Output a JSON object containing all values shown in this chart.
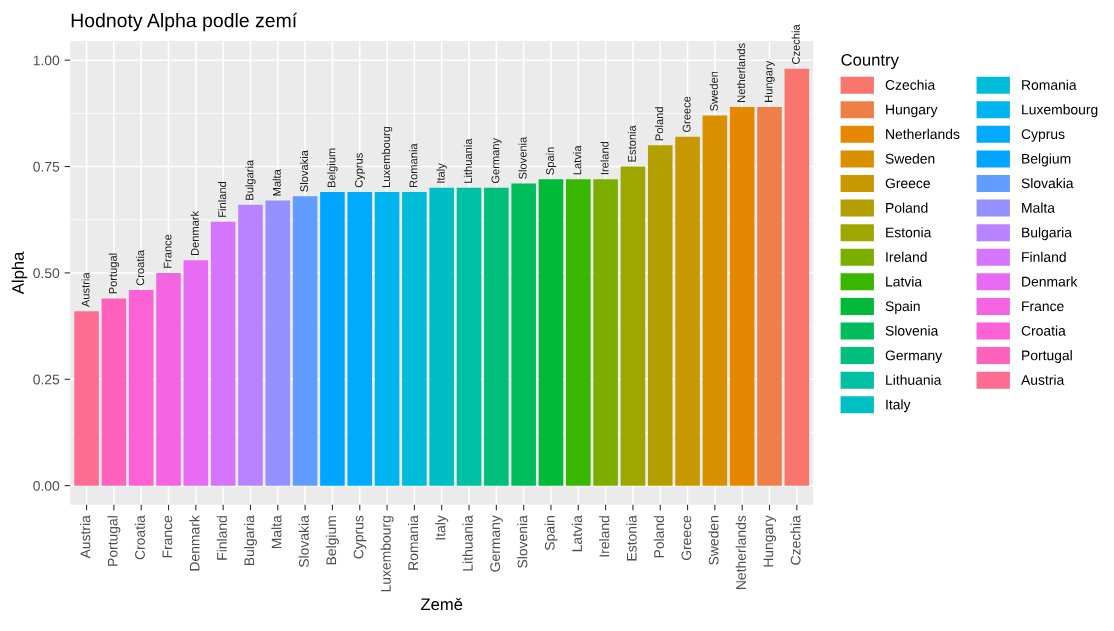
{
  "chart_data": {
    "type": "bar",
    "title": "Hodnoty Alpha podle zemí",
    "xlabel": "Země",
    "ylabel": "Alpha",
    "legend_title": "Country",
    "categories": [
      "Austria",
      "Portugal",
      "Croatia",
      "France",
      "Denmark",
      "Finland",
      "Bulgaria",
      "Malta",
      "Slovakia",
      "Belgium",
      "Cyprus",
      "Luxembourg",
      "Romania",
      "Italy",
      "Lithuania",
      "Germany",
      "Slovenia",
      "Spain",
      "Latvia",
      "Ireland",
      "Estonia",
      "Poland",
      "Greece",
      "Sweden",
      "Netherlands",
      "Hungary",
      "Czechia"
    ],
    "series": [
      {
        "name": "Czechia",
        "color": "#F8766D",
        "values": [
          null,
          null,
          null,
          null,
          null,
          null,
          null,
          null,
          null,
          null,
          null,
          null,
          null,
          null,
          null,
          null,
          null,
          null,
          null,
          null,
          null,
          null,
          null,
          null,
          null,
          null,
          0.98
        ]
      },
      {
        "name": "Hungary",
        "color": "#EF7F49",
        "values": [
          null,
          null,
          null,
          null,
          null,
          null,
          null,
          null,
          null,
          null,
          null,
          null,
          null,
          null,
          null,
          null,
          null,
          null,
          null,
          null,
          null,
          null,
          null,
          null,
          null,
          0.89,
          null
        ]
      },
      {
        "name": "Netherlands",
        "color": "#E58700",
        "values": [
          null,
          null,
          null,
          null,
          null,
          null,
          null,
          null,
          null,
          null,
          null,
          null,
          null,
          null,
          null,
          null,
          null,
          null,
          null,
          null,
          null,
          null,
          null,
          null,
          0.89,
          null,
          null
        ]
      },
      {
        "name": "Sweden",
        "color": "#D89000",
        "values": [
          null,
          null,
          null,
          null,
          null,
          null,
          null,
          null,
          null,
          null,
          null,
          null,
          null,
          null,
          null,
          null,
          null,
          null,
          null,
          null,
          null,
          null,
          null,
          0.87,
          null,
          null,
          null
        ]
      },
      {
        "name": "Greece",
        "color": "#C79800",
        "values": [
          null,
          null,
          null,
          null,
          null,
          null,
          null,
          null,
          null,
          null,
          null,
          null,
          null,
          null,
          null,
          null,
          null,
          null,
          null,
          null,
          null,
          null,
          0.82,
          null,
          null,
          null,
          null
        ]
      },
      {
        "name": "Poland",
        "color": "#B3A000",
        "values": [
          null,
          null,
          null,
          null,
          null,
          null,
          null,
          null,
          null,
          null,
          null,
          null,
          null,
          null,
          null,
          null,
          null,
          null,
          null,
          null,
          null,
          0.8,
          null,
          null,
          null,
          null,
          null
        ]
      },
      {
        "name": "Estonia",
        "color": "#9DA700",
        "values": [
          null,
          null,
          null,
          null,
          null,
          null,
          null,
          null,
          null,
          null,
          null,
          null,
          null,
          null,
          null,
          null,
          null,
          null,
          null,
          null,
          0.75,
          null,
          null,
          null,
          null,
          null,
          null
        ]
      },
      {
        "name": "Ireland",
        "color": "#7CAE00",
        "values": [
          null,
          null,
          null,
          null,
          null,
          null,
          null,
          null,
          null,
          null,
          null,
          null,
          null,
          null,
          null,
          null,
          null,
          null,
          null,
          0.72,
          null,
          null,
          null,
          null,
          null,
          null,
          null
        ]
      },
      {
        "name": "Latvia",
        "color": "#39B600",
        "values": [
          null,
          null,
          null,
          null,
          null,
          null,
          null,
          null,
          null,
          null,
          null,
          null,
          null,
          null,
          null,
          null,
          null,
          null,
          0.72,
          null,
          null,
          null,
          null,
          null,
          null,
          null,
          null
        ]
      },
      {
        "name": "Spain",
        "color": "#00BA38",
        "values": [
          null,
          null,
          null,
          null,
          null,
          null,
          null,
          null,
          null,
          null,
          null,
          null,
          null,
          null,
          null,
          null,
          null,
          0.72,
          null,
          null,
          null,
          null,
          null,
          null,
          null,
          null,
          null
        ]
      },
      {
        "name": "Slovenia",
        "color": "#00BD5C",
        "values": [
          null,
          null,
          null,
          null,
          null,
          null,
          null,
          null,
          null,
          null,
          null,
          null,
          null,
          null,
          null,
          null,
          0.71,
          null,
          null,
          null,
          null,
          null,
          null,
          null,
          null,
          null,
          null
        ]
      },
      {
        "name": "Germany",
        "color": "#00BF7D",
        "values": [
          null,
          null,
          null,
          null,
          null,
          null,
          null,
          null,
          null,
          null,
          null,
          null,
          null,
          null,
          null,
          0.7,
          null,
          null,
          null,
          null,
          null,
          null,
          null,
          null,
          null,
          null,
          null
        ]
      },
      {
        "name": "Lithuania",
        "color": "#00C0A3",
        "values": [
          null,
          null,
          null,
          null,
          null,
          null,
          null,
          null,
          null,
          null,
          null,
          null,
          null,
          null,
          0.7,
          null,
          null,
          null,
          null,
          null,
          null,
          null,
          null,
          null,
          null,
          null,
          null
        ]
      },
      {
        "name": "Italy",
        "color": "#00BFC4",
        "values": [
          null,
          null,
          null,
          null,
          null,
          null,
          null,
          null,
          null,
          null,
          null,
          null,
          null,
          0.7,
          null,
          null,
          null,
          null,
          null,
          null,
          null,
          null,
          null,
          null,
          null,
          null,
          null
        ]
      },
      {
        "name": "Romania",
        "color": "#00BCD8",
        "values": [
          null,
          null,
          null,
          null,
          null,
          null,
          null,
          null,
          null,
          null,
          null,
          null,
          0.69,
          null,
          null,
          null,
          null,
          null,
          null,
          null,
          null,
          null,
          null,
          null,
          null,
          null,
          null
        ]
      },
      {
        "name": "Luxembourg",
        "color": "#00B4EF",
        "values": [
          null,
          null,
          null,
          null,
          null,
          null,
          null,
          null,
          null,
          null,
          null,
          0.69,
          null,
          null,
          null,
          null,
          null,
          null,
          null,
          null,
          null,
          null,
          null,
          null,
          null,
          null,
          null
        ]
      },
      {
        "name": "Cyprus",
        "color": "#00ABFD",
        "values": [
          null,
          null,
          null,
          null,
          null,
          null,
          null,
          null,
          null,
          null,
          0.69,
          null,
          null,
          null,
          null,
          null,
          null,
          null,
          null,
          null,
          null,
          null,
          null,
          null,
          null,
          null,
          null
        ]
      },
      {
        "name": "Belgium",
        "color": "#00A5FF",
        "values": [
          null,
          null,
          null,
          null,
          null,
          null,
          null,
          null,
          null,
          0.69,
          null,
          null,
          null,
          null,
          null,
          null,
          null,
          null,
          null,
          null,
          null,
          null,
          null,
          null,
          null,
          null,
          null
        ]
      },
      {
        "name": "Slovakia",
        "color": "#619CFF",
        "values": [
          null,
          null,
          null,
          null,
          null,
          null,
          null,
          null,
          0.68,
          null,
          null,
          null,
          null,
          null,
          null,
          null,
          null,
          null,
          null,
          null,
          null,
          null,
          null,
          null,
          null,
          null,
          null
        ]
      },
      {
        "name": "Malta",
        "color": "#9590FF",
        "values": [
          null,
          null,
          null,
          null,
          null,
          null,
          null,
          0.67,
          null,
          null,
          null,
          null,
          null,
          null,
          null,
          null,
          null,
          null,
          null,
          null,
          null,
          null,
          null,
          null,
          null,
          null,
          null
        ]
      },
      {
        "name": "Bulgaria",
        "color": "#B983FF",
        "values": [
          null,
          null,
          null,
          null,
          null,
          null,
          0.66,
          null,
          null,
          null,
          null,
          null,
          null,
          null,
          null,
          null,
          null,
          null,
          null,
          null,
          null,
          null,
          null,
          null,
          null,
          null,
          null
        ]
      },
      {
        "name": "Finland",
        "color": "#D575FE",
        "values": [
          null,
          null,
          null,
          null,
          null,
          0.62,
          null,
          null,
          null,
          null,
          null,
          null,
          null,
          null,
          null,
          null,
          null,
          null,
          null,
          null,
          null,
          null,
          null,
          null,
          null,
          null,
          null
        ]
      },
      {
        "name": "Denmark",
        "color": "#E76BF3",
        "values": [
          null,
          null,
          null,
          null,
          0.53,
          null,
          null,
          null,
          null,
          null,
          null,
          null,
          null,
          null,
          null,
          null,
          null,
          null,
          null,
          null,
          null,
          null,
          null,
          null,
          null,
          null,
          null
        ]
      },
      {
        "name": "France",
        "color": "#F464E2",
        "values": [
          null,
          null,
          null,
          0.5,
          null,
          null,
          null,
          null,
          null,
          null,
          null,
          null,
          null,
          null,
          null,
          null,
          null,
          null,
          null,
          null,
          null,
          null,
          null,
          null,
          null,
          null,
          null
        ]
      },
      {
        "name": "Croatia",
        "color": "#FC61D5",
        "values": [
          null,
          null,
          0.46,
          null,
          null,
          null,
          null,
          null,
          null,
          null,
          null,
          null,
          null,
          null,
          null,
          null,
          null,
          null,
          null,
          null,
          null,
          null,
          null,
          null,
          null,
          null,
          null
        ]
      },
      {
        "name": "Portugal",
        "color": "#FF62BC",
        "values": [
          null,
          0.44,
          null,
          null,
          null,
          null,
          null,
          null,
          null,
          null,
          null,
          null,
          null,
          null,
          null,
          null,
          null,
          null,
          null,
          null,
          null,
          null,
          null,
          null,
          null,
          null,
          null
        ]
      },
      {
        "name": "Austria",
        "color": "#FF6C91",
        "values": [
          0.41,
          null,
          null,
          null,
          null,
          null,
          null,
          null,
          null,
          null,
          null,
          null,
          null,
          null,
          null,
          null,
          null,
          null,
          null,
          null,
          null,
          null,
          null,
          null,
          null,
          null,
          null
        ]
      }
    ],
    "annotations": [
      {
        "text": "Austria",
        "x": "Austria",
        "y": 0.41
      },
      {
        "text": "Portugal",
        "x": "Portugal",
        "y": 0.44
      },
      {
        "text": "Croatia",
        "x": "Croatia",
        "y": 0.46
      },
      {
        "text": "France",
        "x": "France",
        "y": 0.5
      },
      {
        "text": "Denmark",
        "x": "Denmark",
        "y": 0.53
      },
      {
        "text": "Finland",
        "x": "Finland",
        "y": 0.62
      },
      {
        "text": "Bulgaria",
        "x": "Bulgaria",
        "y": 0.66
      },
      {
        "text": "Malta",
        "x": "Malta",
        "y": 0.67
      },
      {
        "text": "Slovakia",
        "x": "Slovakia",
        "y": 0.68
      },
      {
        "text": "Belgium",
        "x": "Belgium",
        "y": 0.69
      },
      {
        "text": "Cyprus",
        "x": "Cyprus",
        "y": 0.69
      },
      {
        "text": "Luxembourg",
        "x": "Luxembourg",
        "y": 0.69
      },
      {
        "text": "Romania",
        "x": "Romania",
        "y": 0.69
      },
      {
        "text": "Italy",
        "x": "Italy",
        "y": 0.7
      },
      {
        "text": "Lithuania",
        "x": "Lithuania",
        "y": 0.7
      },
      {
        "text": "Germany",
        "x": "Germany",
        "y": 0.7
      },
      {
        "text": "Slovenia",
        "x": "Slovenia",
        "y": 0.71
      },
      {
        "text": "Spain",
        "x": "Spain",
        "y": 0.72
      },
      {
        "text": "Latvia",
        "x": "Latvia",
        "y": 0.72
      },
      {
        "text": "Ireland",
        "x": "Ireland",
        "y": 0.72
      },
      {
        "text": "Estonia",
        "x": "Estonia",
        "y": 0.75
      },
      {
        "text": "Poland",
        "x": "Poland",
        "y": 0.8
      },
      {
        "text": "Greece",
        "x": "Greece",
        "y": 0.82
      },
      {
        "text": "Sweden",
        "x": "Sweden",
        "y": 0.87
      },
      {
        "text": "Netherlands",
        "x": "Netherlands",
        "y": 0.89
      },
      {
        "text": "Hungary",
        "x": "Hungary",
        "y": 0.89
      },
      {
        "text": "Czechia",
        "x": "Czechia",
        "y": 0.98
      }
    ],
    "ylim": [
      -0.045,
      1.045
    ],
    "yticks": [
      {
        "value": 0,
        "label": "0.00"
      },
      {
        "value": 0.25,
        "label": "0.25"
      },
      {
        "value": 0.5,
        "label": "0.50"
      },
      {
        "value": 0.75,
        "label": "0.75"
      },
      {
        "value": 1,
        "label": "1.00"
      }
    ],
    "grid": true,
    "legend": "right"
  }
}
